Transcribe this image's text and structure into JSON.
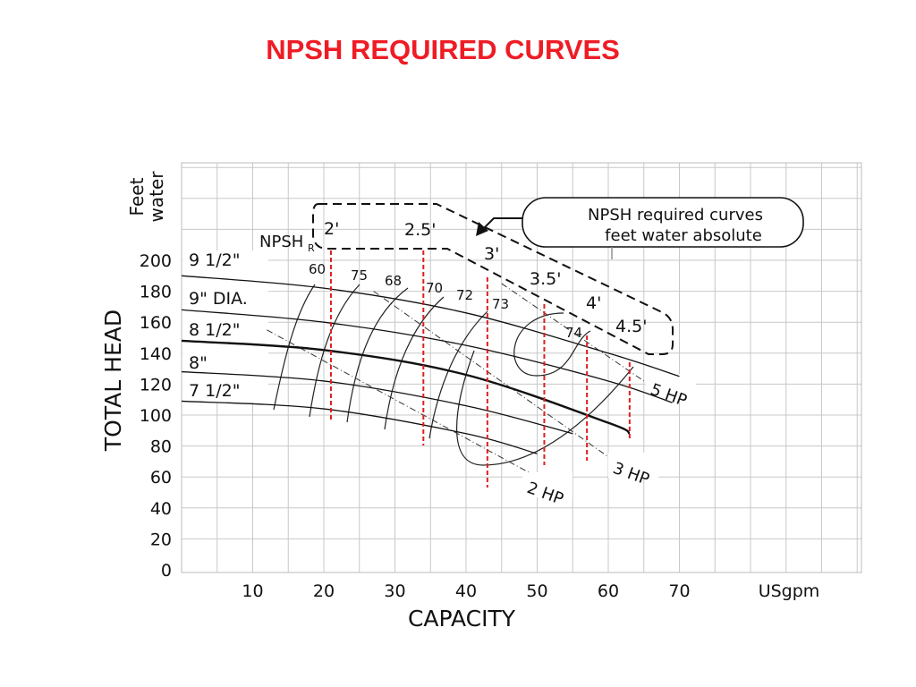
{
  "page_title": "NPSH REQUIRED CURVES",
  "colors": {
    "title": "#ee1c25",
    "npsh_lines": "#e11d1d",
    "grid": "#c8c8c8",
    "curves": "#111111"
  },
  "chart_data": {
    "type": "line",
    "title": "NPSH REQUIRED CURVES",
    "xlabel": "CAPACITY",
    "ylabel": "TOTAL HEAD",
    "y_unit_label": "Feet water",
    "x_unit_label": "USgpm",
    "xlim": [
      0,
      95
    ],
    "ylim": [
      0,
      265
    ],
    "x_ticks": [
      10,
      20,
      30,
      40,
      50,
      60,
      70
    ],
    "y_ticks": [
      0,
      20,
      40,
      60,
      80,
      100,
      120,
      140,
      160,
      180,
      200
    ],
    "grid": true,
    "impeller_curves": [
      {
        "name": "9 1/2\"",
        "x": [
          0,
          20,
          40,
          60,
          70
        ],
        "y": [
          190,
          182,
          166,
          140,
          125
        ]
      },
      {
        "name": "9\" DIA.",
        "x": [
          0,
          20,
          40,
          60,
          69
        ],
        "y": [
          168,
          160,
          145,
          122,
          108
        ]
      },
      {
        "name": "8 1/2\"",
        "x": [
          0,
          20,
          40,
          60,
          63
        ],
        "y": [
          148,
          142,
          126,
          95,
          88
        ]
      },
      {
        "name": "8\"",
        "x": [
          0,
          20,
          40,
          55
        ],
        "y": [
          128,
          122,
          106,
          88
        ]
      },
      {
        "name": "7 1/2\"",
        "x": [
          0,
          20,
          40,
          50
        ],
        "y": [
          109,
          104,
          88,
          75
        ]
      }
    ],
    "efficiency_labels": [
      "60",
      "75",
      "68",
      "70",
      "72",
      "73",
      "74"
    ],
    "horsepower_lines": [
      {
        "name": "2 HP",
        "x": [
          12,
          50
        ],
        "y": [
          155,
          60
        ]
      },
      {
        "name": "3 HP",
        "x": [
          27,
          60
        ],
        "y": [
          180,
          73
        ]
      },
      {
        "name": "5 HP",
        "x": [
          45,
          65
        ],
        "y": [
          185,
          122
        ]
      }
    ],
    "npsh_required": [
      {
        "label": "2'",
        "capacity": 21
      },
      {
        "label": "2.5'",
        "capacity": 34
      },
      {
        "label": "3'",
        "capacity": 43
      },
      {
        "label": "3.5'",
        "capacity": 51
      },
      {
        "label": "4'",
        "capacity": 57
      },
      {
        "label": "4.5'",
        "capacity": 63
      }
    ],
    "annotations": {
      "npsh_label": "NPSH",
      "npsh_subscript": "R",
      "callout_line1": "NPSH required curves",
      "callout_line2": "feet water absolute"
    }
  }
}
